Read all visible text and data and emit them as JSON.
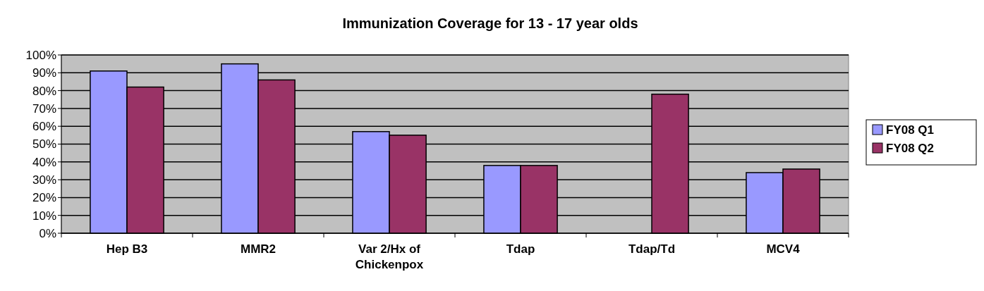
{
  "chart_data": {
    "type": "bar",
    "title": "Immunization Coverage for 13 - 17 year olds",
    "categories": [
      "Hep B3",
      "MMR2",
      "Var 2/Hx of Chickenpox",
      "Tdap",
      "Tdap/Td",
      "MCV4"
    ],
    "series": [
      {
        "name": "FY08 Q1",
        "color": "#9999ff",
        "values": [
          91,
          95,
          57,
          38,
          null,
          34
        ]
      },
      {
        "name": "FY08 Q2",
        "color": "#993366",
        "values": [
          82,
          86,
          55,
          38,
          78,
          36
        ]
      }
    ],
    "ylim": [
      0,
      100
    ],
    "yticks": [
      {
        "value": 0,
        "label": "0%"
      },
      {
        "value": 10,
        "label": "10%"
      },
      {
        "value": 20,
        "label": "20%"
      },
      {
        "value": 30,
        "label": "30%"
      },
      {
        "value": 40,
        "label": "40%"
      },
      {
        "value": 50,
        "label": "50%"
      },
      {
        "value": 60,
        "label": "60%"
      },
      {
        "value": 70,
        "label": "70%"
      },
      {
        "value": 80,
        "label": "80%"
      },
      {
        "value": 90,
        "label": "90%"
      },
      {
        "value": 100,
        "label": "100%"
      }
    ],
    "grid": "y",
    "legend": "right"
  }
}
